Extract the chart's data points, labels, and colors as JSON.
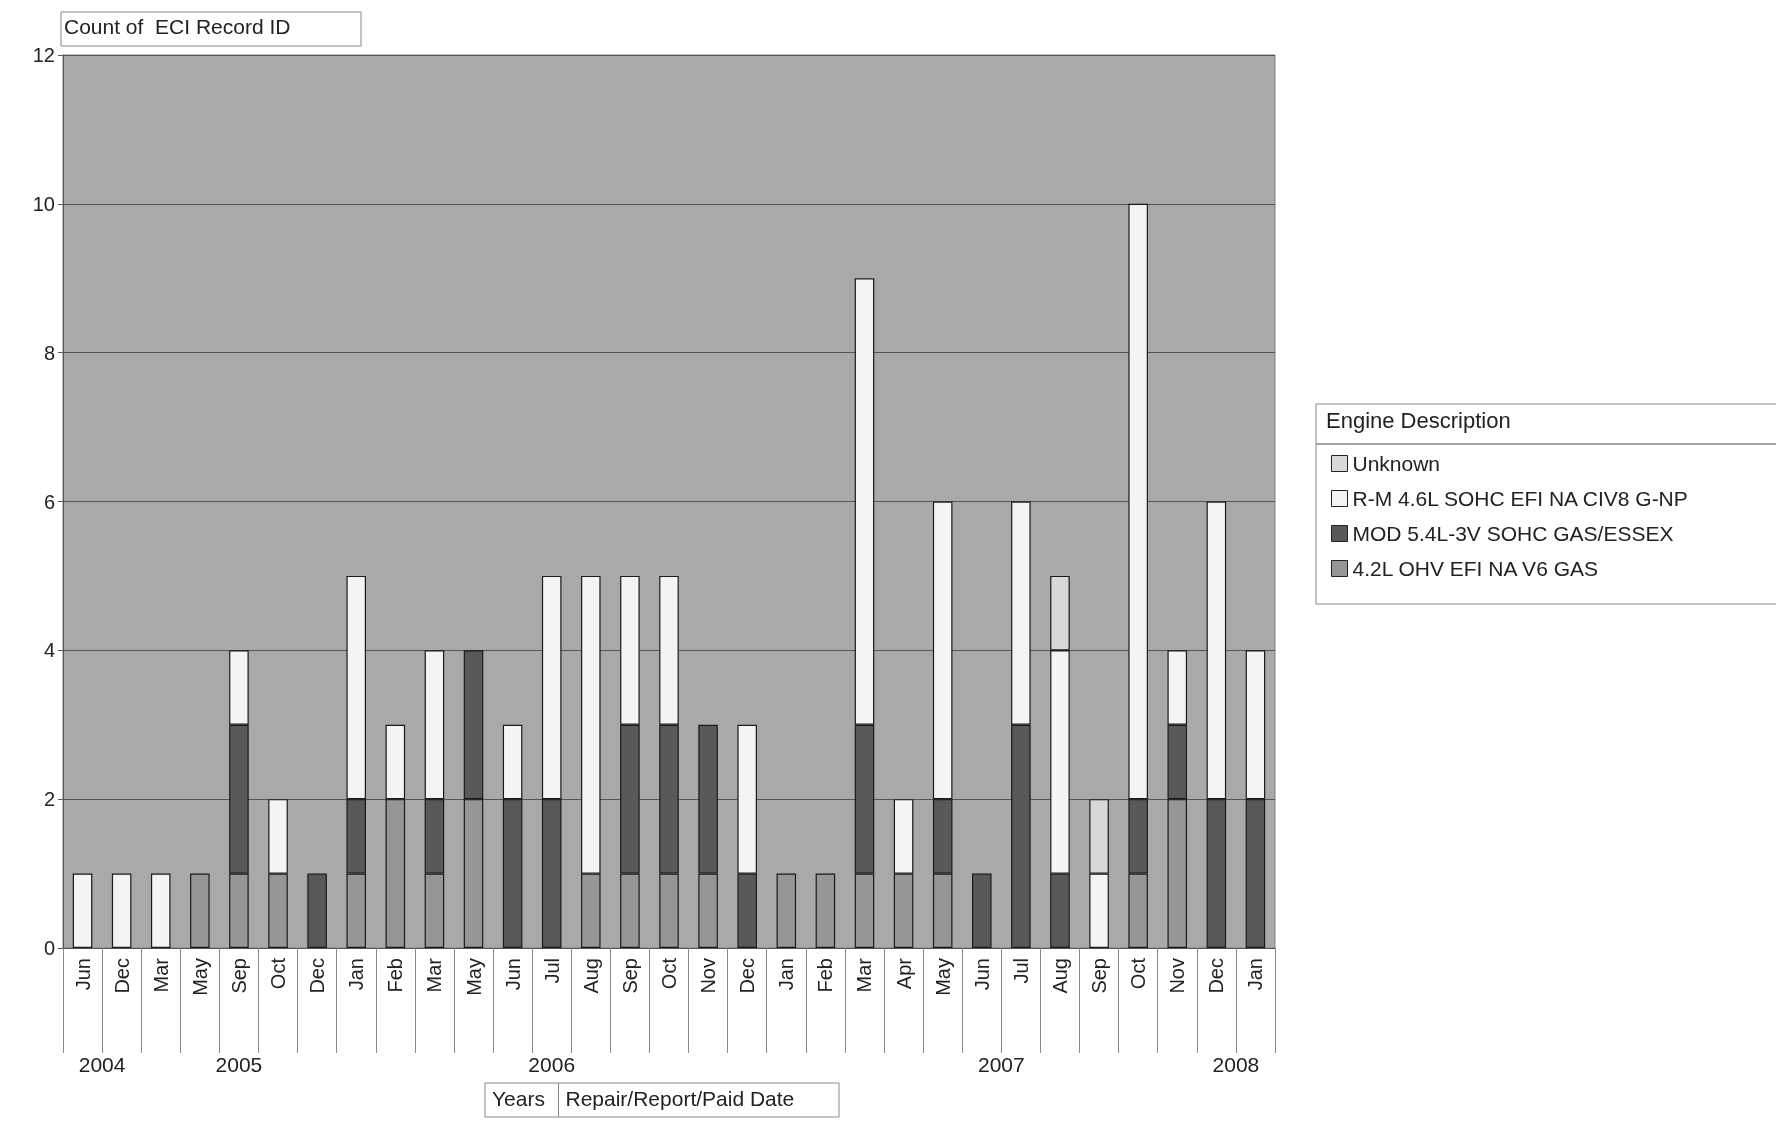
{
  "chart_data": {
    "type": "bar",
    "stacked": true,
    "ylabel": "Count of  ECI Record ID",
    "legend_title": "Engine Description",
    "legend": "right",
    "grid": "y",
    "categories": [
      "Jun",
      "Dec",
      "Mar",
      "May",
      "Sep",
      "Oct",
      "Dec",
      "Jan",
      "Feb",
      "Mar",
      "May",
      "Jun",
      "Jul",
      "Aug",
      "Sep",
      "Oct",
      "Nov",
      "Dec",
      "Jan",
      "Feb",
      "Mar",
      "Apr",
      "May",
      "Jun",
      "Jul",
      "Aug",
      "Sep",
      "Oct",
      "Nov",
      "Dec",
      "Jan"
    ],
    "series": [
      {
        "name": "4.2L OHV EFI NA V6 GAS",
        "color": "#969696",
        "values": [
          null,
          null,
          null,
          1,
          1,
          1,
          null,
          1,
          2,
          1,
          2,
          null,
          null,
          1,
          1,
          1,
          1,
          null,
          1,
          1,
          1,
          1,
          1,
          null,
          null,
          null,
          null,
          1,
          2,
          null,
          null
        ]
      },
      {
        "name": "MOD 5.4L-3V SOHC GAS/ESSEX",
        "color": "#595959",
        "values": [
          null,
          null,
          null,
          null,
          2,
          null,
          1,
          1,
          null,
          1,
          2,
          2,
          2,
          null,
          2,
          2,
          2,
          1,
          null,
          null,
          2,
          null,
          1,
          1,
          3,
          1,
          null,
          1,
          1,
          2,
          2
        ]
      },
      {
        "name": "R-M 4.6L SOHC EFI NA CIV8 G-NP",
        "color": "#f4f4f4",
        "values": [
          1,
          1,
          1,
          null,
          1,
          1,
          null,
          3,
          1,
          2,
          null,
          1,
          3,
          4,
          2,
          2,
          null,
          2,
          null,
          null,
          6,
          1,
          4,
          null,
          3,
          3,
          1,
          8,
          1,
          4,
          2
        ]
      },
      {
        "name": "Unknown",
        "color": "#d8d8d8",
        "values": [
          null,
          null,
          null,
          null,
          null,
          null,
          null,
          null,
          null,
          null,
          null,
          null,
          null,
          null,
          null,
          null,
          null,
          null,
          null,
          null,
          null,
          null,
          null,
          null,
          null,
          1,
          1,
          null,
          null,
          null,
          null
        ]
      }
    ],
    "ylim": [
      0,
      12
    ],
    "yticks": [
      0,
      2,
      4,
      6,
      8,
      10,
      12
    ],
    "annotations": [
      "2004",
      "2005",
      "2006",
      "2007",
      "2008",
      "Years",
      "Repair/Report/Paid Date"
    ]
  }
}
